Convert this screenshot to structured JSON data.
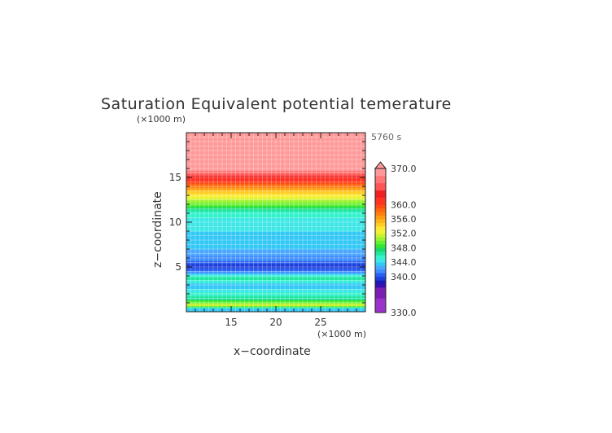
{
  "chart_data": {
    "type": "heatmap",
    "title": "Saturation Equivalent potential temerature",
    "time_label": "5760 s",
    "xlabel": "x−coordinate",
    "ylabel": "z−coordinate",
    "x_unit": "(×1000 m)",
    "y_unit": "(×1000 m)",
    "xlim": [
      10,
      30
    ],
    "ylim": [
      0,
      20
    ],
    "x_ticks": [
      "15",
      "20",
      "25"
    ],
    "x_tick_values": [
      15,
      20,
      25
    ],
    "y_ticks": [
      "5",
      "10",
      "15"
    ],
    "y_tick_values": [
      5,
      10,
      15
    ],
    "colorbar": {
      "min": 330,
      "max": 370,
      "labels": [
        "370.0",
        "360.0",
        "356.0",
        "352.0",
        "348.0",
        "344.0",
        "340.0",
        "330.0"
      ],
      "label_values": [
        370,
        360,
        356,
        352,
        348,
        344,
        340,
        330
      ],
      "levels": [
        330,
        334,
        337,
        338,
        339,
        340,
        341,
        342,
        343,
        344,
        345,
        346,
        347,
        348,
        349,
        350,
        351,
        352,
        353,
        354,
        355,
        356,
        357,
        358,
        359,
        360,
        362,
        364,
        366,
        368,
        370
      ],
      "colors": [
        "#9933cc",
        "#7a1fb0",
        "#3a0fb0",
        "#1a1ab8",
        "#1f3fd9",
        "#2a5ff0",
        "#3f8cff",
        "#4aa6ff",
        "#33c8f5",
        "#3fe6e6",
        "#33f2cc",
        "#22e6a0",
        "#19d966",
        "#33e633",
        "#66f033",
        "#99f233",
        "#ccf233",
        "#f2f233",
        "#ffe633",
        "#ffcc22",
        "#ffb21a",
        "#ff9911",
        "#ff7f11",
        "#ff6611",
        "#ff4d11",
        "#ff3322",
        "#ee2222",
        "#ff5555",
        "#ff7777",
        "#ff9999"
      ],
      "extend_top_color": "#ff9999"
    },
    "profile": [
      {
        "z": 0.3,
        "value": 343
      },
      {
        "z": 0.8,
        "value": 352
      },
      {
        "z": 1.4,
        "value": 347
      },
      {
        "z": 2.2,
        "value": 345
      },
      {
        "z": 3.0,
        "value": 343
      },
      {
        "z": 3.8,
        "value": 347
      },
      {
        "z": 4.5,
        "value": 341.5
      },
      {
        "z": 5.1,
        "value": 339
      },
      {
        "z": 5.7,
        "value": 341
      },
      {
        "z": 6.3,
        "value": 342
      },
      {
        "z": 7.0,
        "value": 343
      },
      {
        "z": 8.0,
        "value": 343.5
      },
      {
        "z": 9.0,
        "value": 344
      },
      {
        "z": 10.0,
        "value": 344.5
      },
      {
        "z": 11.0,
        "value": 345.5
      },
      {
        "z": 11.5,
        "value": 347
      },
      {
        "z": 12.0,
        "value": 349.5
      },
      {
        "z": 12.5,
        "value": 351
      },
      {
        "z": 13.0,
        "value": 353
      },
      {
        "z": 13.5,
        "value": 355
      },
      {
        "z": 14.0,
        "value": 357.5
      },
      {
        "z": 14.5,
        "value": 360
      },
      {
        "z": 15.0,
        "value": 362
      },
      {
        "z": 15.5,
        "value": 366
      },
      {
        "z": 16.0,
        "value": 369
      },
      {
        "z": 20.0,
        "value": 372
      }
    ]
  }
}
